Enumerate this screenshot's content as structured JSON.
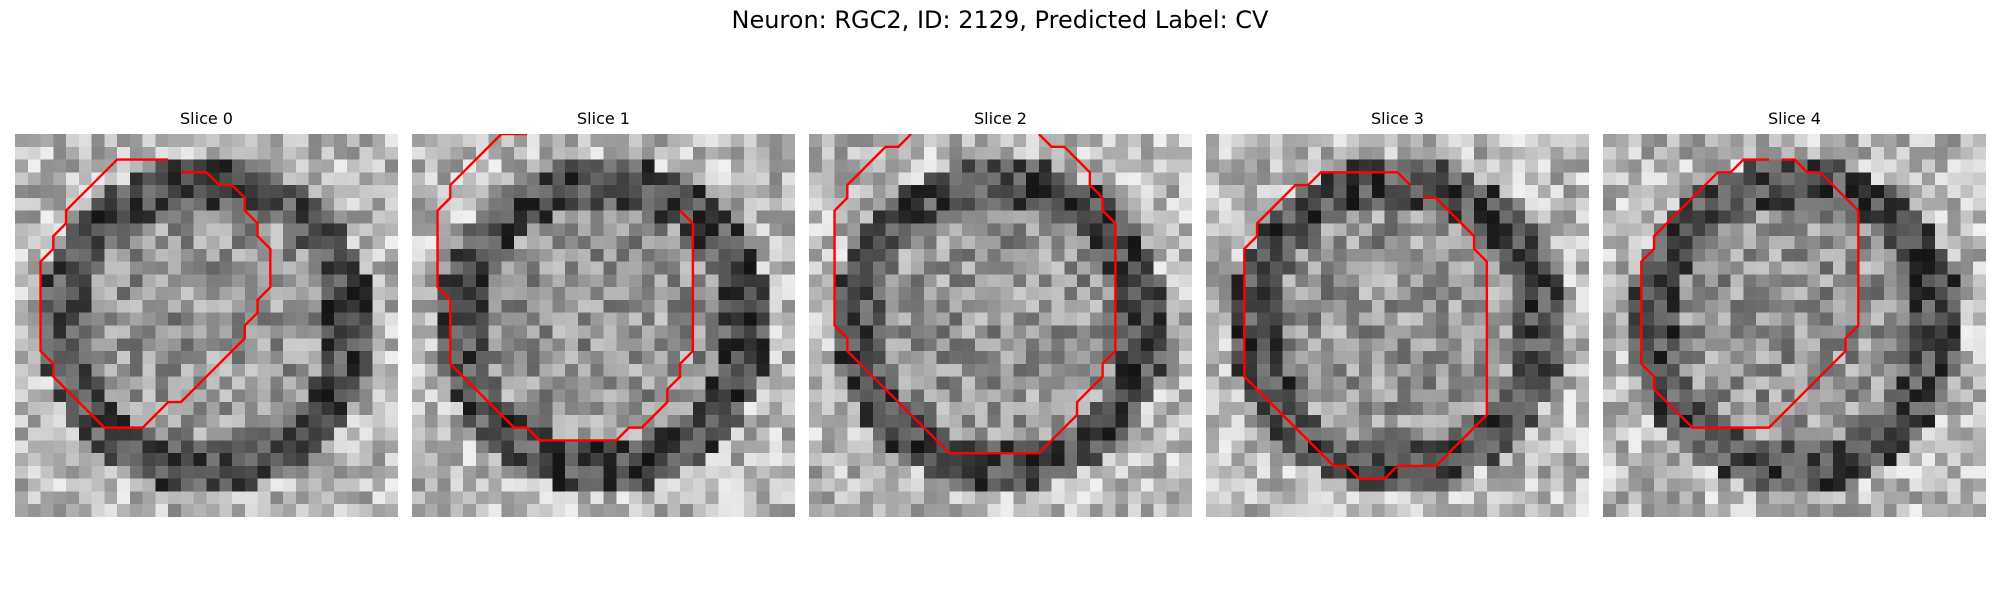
{
  "title": "Neuron: RGC2, ID: 2129, Predicted Label: CV",
  "contour_color": "#ff0000",
  "panels": [
    {
      "title": "Slice 0",
      "contour": [
        [
          13,
          3
        ],
        [
          15,
          3
        ],
        [
          16,
          4
        ],
        [
          17,
          4
        ],
        [
          18,
          5
        ],
        [
          18,
          6
        ],
        [
          19,
          7
        ],
        [
          19,
          8
        ],
        [
          20,
          9
        ],
        [
          20,
          10
        ],
        [
          20,
          11
        ],
        [
          20,
          12
        ],
        [
          19,
          13
        ],
        [
          19,
          14
        ],
        [
          18,
          15
        ],
        [
          18,
          16
        ],
        [
          17,
          17
        ],
        [
          16,
          18
        ],
        [
          15,
          19
        ],
        [
          14,
          20
        ],
        [
          13,
          21
        ],
        [
          12,
          21
        ],
        [
          11,
          22
        ],
        [
          10,
          23
        ],
        [
          9,
          23
        ],
        [
          8,
          23
        ],
        [
          7,
          23
        ],
        [
          6,
          22
        ],
        [
          5,
          21
        ],
        [
          4,
          20
        ],
        [
          3,
          19
        ],
        [
          3,
          18
        ],
        [
          2,
          17
        ],
        [
          2,
          16
        ],
        [
          2,
          15
        ],
        [
          2,
          14
        ],
        [
          2,
          13
        ],
        [
          2,
          12
        ],
        [
          2,
          11
        ],
        [
          2,
          10
        ],
        [
          3,
          9
        ],
        [
          3,
          8
        ],
        [
          4,
          7
        ],
        [
          4,
          6
        ],
        [
          5,
          5
        ],
        [
          6,
          4
        ],
        [
          7,
          3
        ],
        [
          8,
          2
        ],
        [
          9,
          2
        ],
        [
          10,
          2
        ],
        [
          11,
          2
        ],
        [
          12,
          2
        ]
      ]
    },
    {
      "title": "Slice 1",
      "contour": [
        [
          21,
          6
        ],
        [
          22,
          7
        ],
        [
          22,
          8
        ],
        [
          22,
          9
        ],
        [
          22,
          10
        ],
        [
          22,
          11
        ],
        [
          22,
          12
        ],
        [
          22,
          13
        ],
        [
          22,
          14
        ],
        [
          22,
          15
        ],
        [
          22,
          16
        ],
        [
          22,
          17
        ],
        [
          21,
          18
        ],
        [
          21,
          19
        ],
        [
          20,
          20
        ],
        [
          20,
          21
        ],
        [
          19,
          22
        ],
        [
          18,
          23
        ],
        [
          17,
          23
        ],
        [
          16,
          24
        ],
        [
          15,
          24
        ],
        [
          14,
          24
        ],
        [
          13,
          24
        ],
        [
          12,
          24
        ],
        [
          11,
          24
        ],
        [
          10,
          24
        ],
        [
          9,
          23
        ],
        [
          8,
          23
        ],
        [
          7,
          22
        ],
        [
          6,
          21
        ],
        [
          5,
          20
        ],
        [
          4,
          19
        ],
        [
          3,
          18
        ],
        [
          3,
          17
        ],
        [
          3,
          16
        ],
        [
          3,
          15
        ],
        [
          3,
          14
        ],
        [
          3,
          13
        ],
        [
          2,
          12
        ],
        [
          2,
          11
        ],
        [
          2,
          10
        ],
        [
          2,
          9
        ],
        [
          2,
          8
        ],
        [
          2,
          7
        ],
        [
          2,
          6
        ],
        [
          3,
          5
        ],
        [
          3,
          4
        ],
        [
          4,
          3
        ],
        [
          5,
          2
        ],
        [
          6,
          1
        ],
        [
          7,
          0
        ],
        [
          8,
          0
        ],
        [
          9,
          0
        ]
      ]
    },
    {
      "title": "Slice 2",
      "contour": [
        [
          18,
          0
        ],
        [
          19,
          1
        ],
        [
          20,
          1
        ],
        [
          21,
          2
        ],
        [
          22,
          3
        ],
        [
          22,
          4
        ],
        [
          23,
          5
        ],
        [
          23,
          6
        ],
        [
          24,
          7
        ],
        [
          24,
          8
        ],
        [
          24,
          9
        ],
        [
          24,
          10
        ],
        [
          24,
          11
        ],
        [
          24,
          12
        ],
        [
          24,
          13
        ],
        [
          24,
          14
        ],
        [
          24,
          15
        ],
        [
          24,
          16
        ],
        [
          24,
          17
        ],
        [
          23,
          18
        ],
        [
          23,
          19
        ],
        [
          22,
          20
        ],
        [
          21,
          21
        ],
        [
          21,
          22
        ],
        [
          20,
          23
        ],
        [
          19,
          24
        ],
        [
          18,
          25
        ],
        [
          17,
          25
        ],
        [
          16,
          25
        ],
        [
          15,
          25
        ],
        [
          14,
          25
        ],
        [
          13,
          25
        ],
        [
          12,
          25
        ],
        [
          11,
          25
        ],
        [
          10,
          24
        ],
        [
          9,
          23
        ],
        [
          8,
          22
        ],
        [
          7,
          21
        ],
        [
          6,
          20
        ],
        [
          5,
          19
        ],
        [
          4,
          18
        ],
        [
          3,
          17
        ],
        [
          3,
          16
        ],
        [
          2,
          15
        ],
        [
          2,
          14
        ],
        [
          2,
          13
        ],
        [
          2,
          12
        ],
        [
          2,
          11
        ],
        [
          2,
          10
        ],
        [
          2,
          9
        ],
        [
          2,
          8
        ],
        [
          2,
          7
        ],
        [
          2,
          6
        ],
        [
          3,
          5
        ],
        [
          3,
          4
        ],
        [
          4,
          3
        ],
        [
          5,
          2
        ],
        [
          6,
          1
        ],
        [
          7,
          1
        ],
        [
          8,
          0
        ]
      ]
    },
    {
      "title": "Slice 3",
      "contour": [
        [
          17,
          5
        ],
        [
          18,
          5
        ],
        [
          19,
          6
        ],
        [
          20,
          7
        ],
        [
          21,
          8
        ],
        [
          21,
          9
        ],
        [
          22,
          10
        ],
        [
          22,
          11
        ],
        [
          22,
          12
        ],
        [
          22,
          13
        ],
        [
          22,
          14
        ],
        [
          22,
          15
        ],
        [
          22,
          16
        ],
        [
          22,
          17
        ],
        [
          22,
          18
        ],
        [
          22,
          19
        ],
        [
          22,
          20
        ],
        [
          22,
          21
        ],
        [
          22,
          22
        ],
        [
          21,
          23
        ],
        [
          20,
          24
        ],
        [
          19,
          25
        ],
        [
          18,
          26
        ],
        [
          17,
          26
        ],
        [
          16,
          26
        ],
        [
          15,
          26
        ],
        [
          14,
          27
        ],
        [
          13,
          27
        ],
        [
          12,
          27
        ],
        [
          11,
          26
        ],
        [
          10,
          26
        ],
        [
          9,
          25
        ],
        [
          8,
          24
        ],
        [
          7,
          23
        ],
        [
          6,
          22
        ],
        [
          5,
          21
        ],
        [
          4,
          20
        ],
        [
          3,
          19
        ],
        [
          3,
          18
        ],
        [
          3,
          17
        ],
        [
          3,
          16
        ],
        [
          3,
          15
        ],
        [
          3,
          14
        ],
        [
          3,
          13
        ],
        [
          3,
          12
        ],
        [
          3,
          11
        ],
        [
          3,
          10
        ],
        [
          3,
          9
        ],
        [
          4,
          8
        ],
        [
          4,
          7
        ],
        [
          5,
          6
        ],
        [
          6,
          5
        ],
        [
          7,
          4
        ],
        [
          8,
          4
        ],
        [
          9,
          3
        ],
        [
          10,
          3
        ],
        [
          11,
          3
        ],
        [
          12,
          3
        ],
        [
          13,
          3
        ],
        [
          14,
          3
        ],
        [
          15,
          3
        ],
        [
          16,
          4
        ]
      ]
    },
    {
      "title": "Slice 4",
      "contour": [
        [
          14,
          2
        ],
        [
          15,
          2
        ],
        [
          16,
          3
        ],
        [
          17,
          3
        ],
        [
          18,
          4
        ],
        [
          19,
          5
        ],
        [
          20,
          6
        ],
        [
          20,
          7
        ],
        [
          20,
          8
        ],
        [
          20,
          9
        ],
        [
          20,
          10
        ],
        [
          20,
          11
        ],
        [
          20,
          12
        ],
        [
          20,
          13
        ],
        [
          20,
          14
        ],
        [
          20,
          15
        ],
        [
          19,
          16
        ],
        [
          19,
          17
        ],
        [
          18,
          18
        ],
        [
          17,
          19
        ],
        [
          16,
          20
        ],
        [
          15,
          21
        ],
        [
          14,
          22
        ],
        [
          13,
          23
        ],
        [
          12,
          23
        ],
        [
          11,
          23
        ],
        [
          10,
          23
        ],
        [
          9,
          23
        ],
        [
          8,
          23
        ],
        [
          7,
          23
        ],
        [
          6,
          22
        ],
        [
          5,
          21
        ],
        [
          4,
          20
        ],
        [
          4,
          19
        ],
        [
          3,
          18
        ],
        [
          3,
          17
        ],
        [
          3,
          16
        ],
        [
          3,
          15
        ],
        [
          3,
          14
        ],
        [
          3,
          13
        ],
        [
          3,
          12
        ],
        [
          3,
          11
        ],
        [
          3,
          10
        ],
        [
          4,
          9
        ],
        [
          4,
          8
        ],
        [
          5,
          7
        ],
        [
          6,
          6
        ],
        [
          7,
          5
        ],
        [
          8,
          4
        ],
        [
          9,
          3
        ],
        [
          10,
          3
        ],
        [
          11,
          2
        ],
        [
          12,
          2
        ],
        [
          13,
          2
        ]
      ]
    }
  ]
}
